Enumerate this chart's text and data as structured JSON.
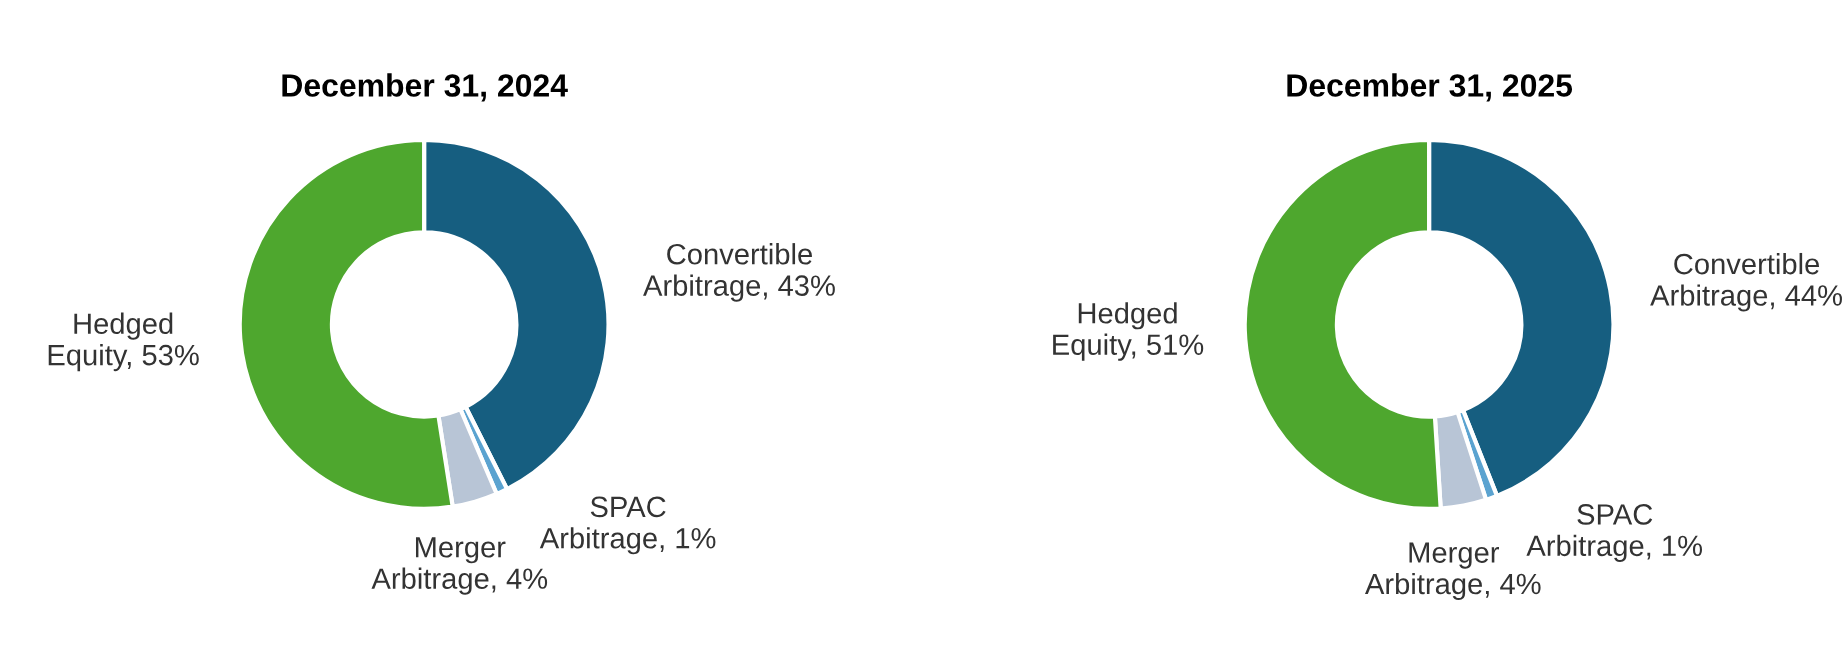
{
  "chart_data": [
    {
      "type": "donut",
      "title": "December 31, 2024",
      "categories": [
        "Convertible\nArbitrage",
        "SPAC\nArbitrage",
        "Merger\nArbitrage",
        "Hedged\nEquity"
      ],
      "values": [
        43,
        1,
        4,
        53
      ],
      "colors": [
        "#165e80",
        "#5ba3d0",
        "#b8c5d6",
        "#4ea72e"
      ],
      "value_labels": [
        "43%",
        "1%",
        "4%",
        "53%"
      ],
      "legend": false
    },
    {
      "type": "donut",
      "title": "December 31, 2025",
      "categories": [
        "Convertible\nArbitrage",
        "SPAC\nArbitrage",
        "Merger\nArbitrage",
        "Hedged\nEquity"
      ],
      "values": [
        44,
        1,
        4,
        51
      ],
      "colors": [
        "#165e80",
        "#5ba3d0",
        "#b8c5d6",
        "#4ea72e"
      ],
      "value_labels": [
        "44%",
        "1%",
        "4%",
        "51%"
      ],
      "legend": false
    }
  ]
}
